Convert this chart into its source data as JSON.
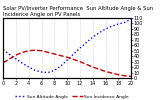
{
  "title_line1": "Solar PV/Inverter Performance  Sun Altitude Angle & Sun Incidence Angle on PV Panels",
  "blue_label": "Sun Altitude Angle",
  "red_label": "Sun Incidence Angle",
  "x": [
    0,
    1,
    2,
    3,
    4,
    5,
    6,
    7,
    8,
    9,
    10,
    11,
    12,
    13,
    14,
    15,
    16,
    17,
    18,
    19,
    20
  ],
  "blue_y": [
    52,
    43,
    35,
    27,
    20,
    14,
    11,
    10,
    14,
    22,
    33,
    44,
    55,
    65,
    75,
    83,
    90,
    95,
    99,
    102,
    108
  ],
  "red_y": [
    28,
    35,
    42,
    47,
    50,
    51,
    50,
    47,
    44,
    41,
    38,
    34,
    30,
    25,
    20,
    16,
    12,
    9,
    6,
    4,
    3
  ],
  "ylim": [
    0,
    110
  ],
  "yticks_right": [
    0,
    10,
    20,
    30,
    40,
    50,
    60,
    70,
    80,
    90,
    100,
    110
  ],
  "blue_color": "#0000ff",
  "red_color": "#cc0000",
  "bg_color": "#ffffff",
  "grid_color": "#999999",
  "title_fontsize": 3.8,
  "tick_fontsize": 3.5,
  "legend_fontsize": 3.2
}
